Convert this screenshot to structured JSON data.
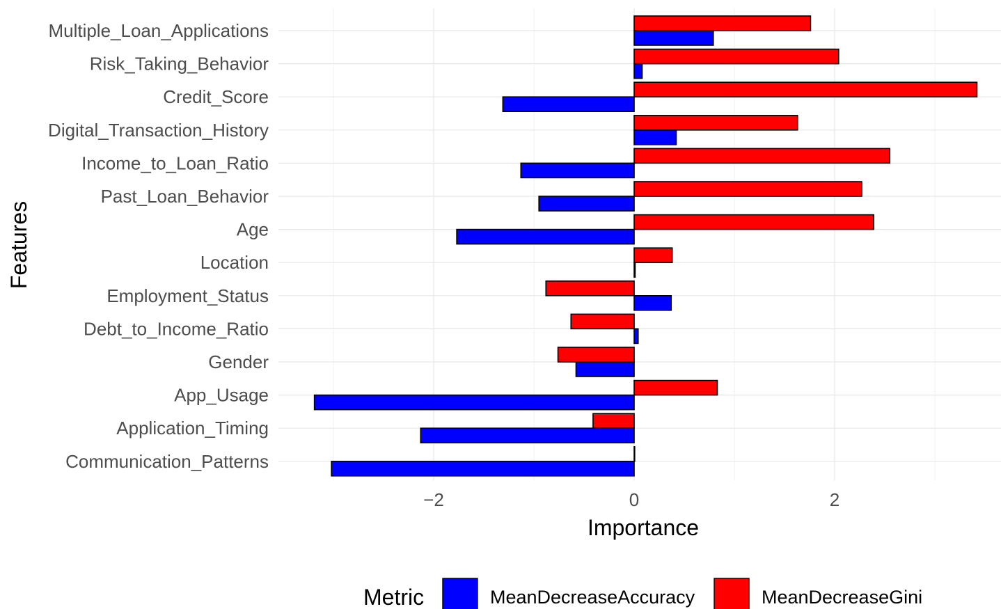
{
  "chart_data": {
    "type": "bar",
    "orientation": "horizontal",
    "xlabel": "Importance",
    "ylabel": "Features",
    "xlim": [
      -3.35,
      3.6
    ],
    "xticks": [
      -2,
      0,
      2
    ],
    "grid": true,
    "categories": [
      "Multiple_Loan_Applications",
      "Risk_Taking_Behavior",
      "Credit_Score",
      "Digital_Transaction_History",
      "Income_to_Loan_Ratio",
      "Past_Loan_Behavior",
      "Age",
      "Location",
      "Employment_Status",
      "Debt_to_Income_Ratio",
      "Gender",
      "App_Usage",
      "Application_Timing",
      "Communication_Patterns"
    ],
    "series": [
      {
        "name": "MeanDecreaseAccuracy",
        "color": "#0000ff",
        "values": [
          0.79,
          0.08,
          -1.31,
          0.42,
          -1.13,
          -0.95,
          -1.77,
          0.01,
          0.37,
          0.04,
          -0.58,
          -3.19,
          -2.13,
          -3.02
        ]
      },
      {
        "name": "MeanDecreaseGini",
        "color": "#ff0000",
        "values": [
          1.76,
          2.04,
          3.42,
          1.63,
          2.55,
          2.27,
          2.39,
          0.38,
          -0.88,
          -0.63,
          -0.76,
          0.83,
          -0.41,
          0.0
        ]
      }
    ],
    "legend": {
      "title": "Metric",
      "position": "bottom"
    }
  }
}
